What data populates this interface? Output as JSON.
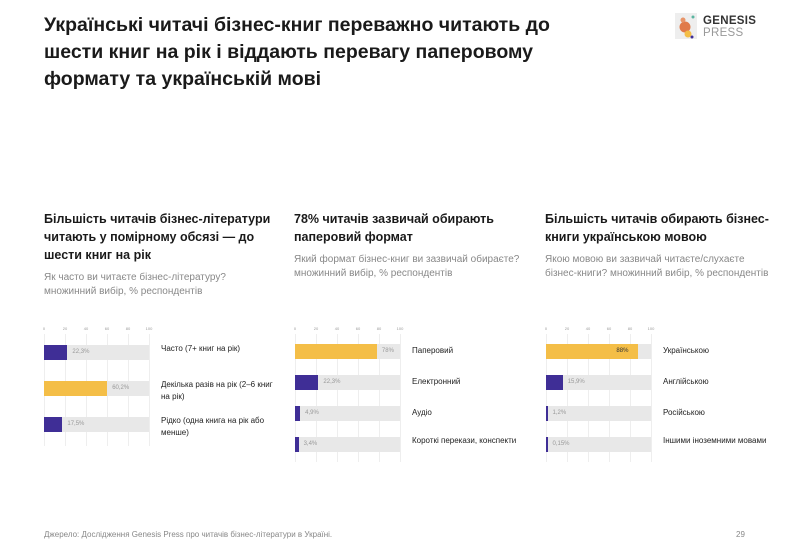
{
  "title": "Українські читачі бізнес-книг переважно читають до шести книг на рік і віддають перевагу паперовому формату та українській мові",
  "logo": {
    "line1": "GENESIS",
    "line2": "PRESS"
  },
  "colors": {
    "purple": "#3f2e96",
    "yellow": "#f4be47",
    "track": "#e8e8e8"
  },
  "footer": "Джерело: Дослідження Genesis Press про читачів бізнес-літератури в Україні.",
  "page_number": "29",
  "chart_data": [
    {
      "type": "bar",
      "orientation": "horizontal",
      "heading": "Більшість читачів бізнес-літератури читають у помірному обсязі — до шести книг на рік",
      "question": "Як часто ви читаєте бізнес-літературу? множинний вибір, % респондентів",
      "xlim": [
        0,
        100
      ],
      "ticks": [
        "0",
        "20",
        "40",
        "60",
        "80",
        "100"
      ],
      "categories": [
        "Часто (7+ книг на рік)",
        "Декілька разів на рік (2–6 книг на рік)",
        "Рідко (одна книга на рік або менше)"
      ],
      "values": [
        22.3,
        60.2,
        17.5
      ],
      "value_labels": [
        "22,3%",
        "60,2%",
        "17,5%"
      ],
      "highlight": [
        false,
        true,
        false
      ]
    },
    {
      "type": "bar",
      "orientation": "horizontal",
      "heading": "78% читачів зазвичай обирають паперовий формат",
      "question": "Який формат бізнес-книг ви зазвичай обираєте? множинний вибір, % респондентів",
      "xlim": [
        0,
        100
      ],
      "ticks": [
        "0",
        "20",
        "40",
        "60",
        "80",
        "100"
      ],
      "categories": [
        "Паперовий",
        "Електронний",
        "Аудіо",
        "Короткі перекази, конспекти"
      ],
      "values": [
        78,
        22.3,
        4.9,
        3.4
      ],
      "value_labels": [
        "78%",
        "22,3%",
        "4,9%",
        "3,4%"
      ],
      "highlight": [
        true,
        false,
        false,
        false
      ]
    },
    {
      "type": "bar",
      "orientation": "horizontal",
      "heading": "Більшість читачів обирають бізнес-книги українською мовою",
      "question": "Якою мовою ви зазвичай читаєте/слухаєте бізнес-книги? множинний вибір, % респондентів",
      "xlim": [
        0,
        100
      ],
      "ticks": [
        "0",
        "20",
        "40",
        "60",
        "80",
        "100"
      ],
      "categories": [
        "Українською",
        "Англійською",
        "Російською",
        "Іншими іноземними мовами"
      ],
      "values": [
        88,
        15.9,
        1.2,
        0.15
      ],
      "value_labels": [
        "88%",
        "15,9%",
        "1,2%",
        "0,15%"
      ],
      "highlight": [
        true,
        false,
        false,
        false
      ]
    }
  ]
}
